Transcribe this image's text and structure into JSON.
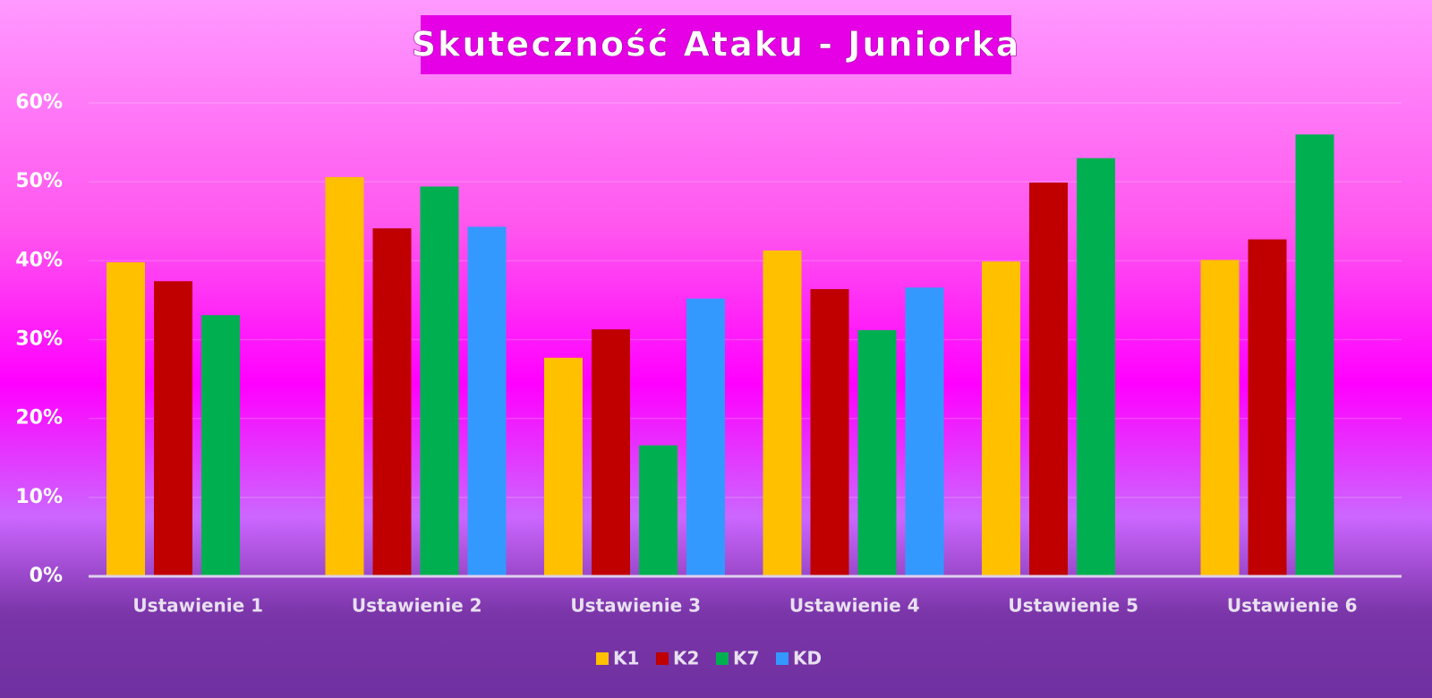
{
  "chart_data": {
    "type": "bar",
    "title": "Skuteczność Ataku - Juniorka",
    "categories": [
      "Ustawienie 1",
      "Ustawienie 2",
      "Ustawienie 3",
      "Ustawienie 4",
      "Ustawienie 5",
      "Ustawienie 6"
    ],
    "series": [
      {
        "name": "K1",
        "color": "#ffc000",
        "values": [
          39.8,
          50.6,
          27.7,
          41.3,
          39.9,
          40.1
        ]
      },
      {
        "name": "K2",
        "color": "#c00000",
        "values": [
          37.4,
          44.1,
          31.3,
          36.4,
          49.9,
          42.7
        ]
      },
      {
        "name": "K7",
        "color": "#00b050",
        "values": [
          33.1,
          49.4,
          16.6,
          31.2,
          53.0,
          56.0
        ]
      },
      {
        "name": "KD",
        "color": "#3399ff",
        "values": [
          null,
          44.3,
          35.2,
          36.6,
          null,
          null
        ]
      }
    ],
    "ylim": [
      0,
      60
    ],
    "yticks": [
      {
        "value": 0,
        "label": "0%"
      },
      {
        "value": 10,
        "label": "10%"
      },
      {
        "value": 20,
        "label": "20%"
      },
      {
        "value": 30,
        "label": "30%"
      },
      {
        "value": 40,
        "label": "40%"
      },
      {
        "value": 50,
        "label": "50%"
      },
      {
        "value": 60,
        "label": "60%"
      }
    ],
    "grid": true,
    "legend": "bottom"
  }
}
